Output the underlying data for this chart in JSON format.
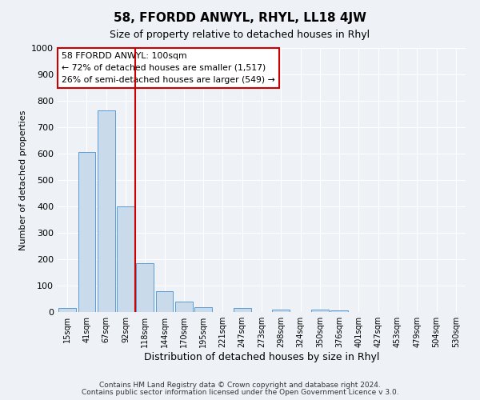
{
  "title": "58, FFORDD ANWYL, RHYL, LL18 4JW",
  "subtitle": "Size of property relative to detached houses in Rhyl",
  "xlabel": "Distribution of detached houses by size in Rhyl",
  "ylabel": "Number of detached properties",
  "footnote1": "Contains HM Land Registry data © Crown copyright and database right 2024.",
  "footnote2": "Contains public sector information licensed under the Open Government Licence v 3.0.",
  "bar_labels": [
    "15sqm",
    "41sqm",
    "67sqm",
    "92sqm",
    "118sqm",
    "144sqm",
    "170sqm",
    "195sqm",
    "221sqm",
    "247sqm",
    "273sqm",
    "298sqm",
    "324sqm",
    "350sqm",
    "376sqm",
    "401sqm",
    "427sqm",
    "453sqm",
    "479sqm",
    "504sqm",
    "530sqm"
  ],
  "bar_values": [
    15,
    605,
    765,
    400,
    185,
    78,
    38,
    18,
    0,
    15,
    0,
    10,
    0,
    10,
    5,
    0,
    0,
    0,
    0,
    0,
    0
  ],
  "bar_color": "#c9daea",
  "bar_edge_color": "#5b9bd5",
  "vline_color": "#cc0000",
  "annotation_title": "58 FFORDD ANWYL: 100sqm",
  "annotation_line1": "← 72% of detached houses are smaller (1,517)",
  "annotation_line2": "26% of semi-detached houses are larger (549) →",
  "annotation_box_color": "#cc0000",
  "ylim": [
    0,
    1000
  ],
  "background_color": "#eef2f7",
  "grid_color": "#ffffff"
}
